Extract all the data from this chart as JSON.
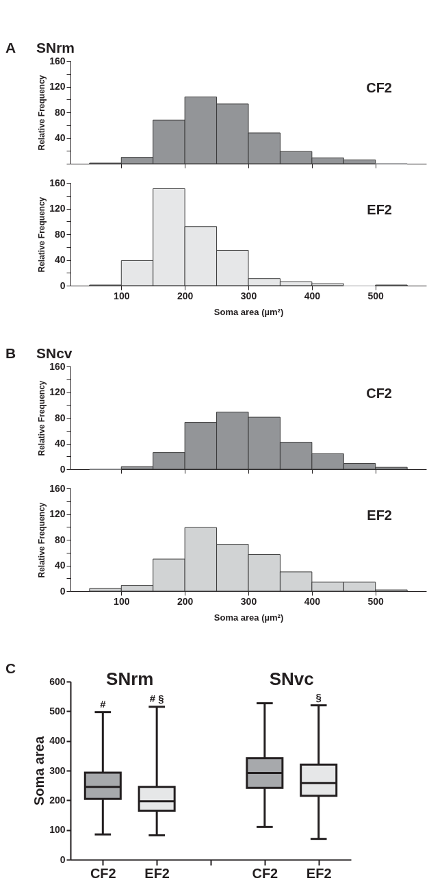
{
  "chart_data": [
    {
      "type": "histogram",
      "title": "SNrm",
      "annotations": [
        "A"
      ],
      "ylabel": "Relative Frequency",
      "bins": [
        50,
        100,
        150,
        200,
        250,
        300,
        350,
        400,
        450,
        500,
        550
      ],
      "series": [
        {
          "name": "CF2",
          "color": "#939598",
          "values": [
            1,
            10,
            68,
            104,
            93,
            48,
            19,
            9,
            6,
            0
          ]
        }
      ],
      "xlim": [
        20,
        580
      ],
      "xticks": [
        100,
        200,
        300,
        400,
        500
      ],
      "ylim": [
        0,
        160
      ],
      "yticks": [
        {
          "value": 0,
          "label": null
        },
        {
          "value": 20,
          "label": null
        },
        40,
        {
          "value": 60,
          "label": null
        },
        80,
        {
          "value": 100,
          "label": null
        },
        120,
        {
          "value": 140,
          "label": null
        },
        160
      ],
      "tick_labels": "y"
    },
    {
      "type": "histogram",
      "ylabel": "Relative Frequency",
      "xlabel": "Soma area (µm²)",
      "bins": [
        50,
        100,
        150,
        200,
        250,
        300,
        350,
        400,
        450,
        500,
        550
      ],
      "series": [
        {
          "name": "EF2",
          "color": "#e6e7e8",
          "values": [
            1,
            39,
            151,
            92,
            55,
            11,
            6,
            3,
            0,
            1
          ]
        }
      ],
      "xlim": [
        20,
        580
      ],
      "xticks": [
        100,
        200,
        300,
        400,
        500
      ],
      "ylim": [
        0,
        160
      ],
      "yticks": [
        0,
        {
          "value": 20,
          "label": null
        },
        40,
        {
          "value": 60,
          "label": null
        },
        80,
        {
          "value": 100,
          "label": null
        },
        120,
        {
          "value": 140,
          "label": null
        },
        160
      ]
    },
    {
      "type": "histogram",
      "title": "SNcv",
      "annotations": [
        "B"
      ],
      "ylabel": "Relative Frequency",
      "bins": [
        50,
        100,
        150,
        200,
        250,
        300,
        350,
        400,
        450,
        500,
        550
      ],
      "series": [
        {
          "name": "CF2",
          "color": "#939598",
          "values": [
            0,
            4,
            26,
            73,
            89,
            81,
            42,
            24,
            9,
            3
          ]
        }
      ],
      "xlim": [
        20,
        580
      ],
      "xticks": [
        100,
        200,
        300,
        400,
        500
      ],
      "ylim": [
        0,
        160
      ],
      "yticks": [
        0,
        {
          "value": 20,
          "label": null
        },
        40,
        {
          "value": 60,
          "label": null
        },
        80,
        {
          "value": 100,
          "label": null
        },
        120,
        {
          "value": 140,
          "label": null
        },
        160
      ],
      "tick_labels": "y"
    },
    {
      "type": "histogram",
      "ylabel": "Relative Frequency",
      "xlabel": "Soma area (µm²)",
      "bins": [
        50,
        100,
        150,
        200,
        250,
        300,
        350,
        400,
        450,
        500,
        550
      ],
      "series": [
        {
          "name": "EF2",
          "color": "#d1d3d4",
          "values": [
            4,
            9,
            50,
            99,
            73,
            57,
            30,
            14,
            14,
            2
          ]
        }
      ],
      "xlim": [
        20,
        580
      ],
      "xticks": [
        100,
        200,
        300,
        400,
        500
      ],
      "ylim": [
        0,
        160
      ],
      "yticks": [
        0,
        {
          "value": 20,
          "label": null
        },
        40,
        {
          "value": 60,
          "label": null
        },
        80,
        {
          "value": 100,
          "label": null
        },
        120,
        {
          "value": 140,
          "label": null
        },
        160
      ]
    },
    {
      "type": "box",
      "annotations": [
        "C",
        "SNrm",
        "SNvc"
      ],
      "ylabel": "Soma area",
      "categories": [
        "CF2",
        "EF2",
        null,
        "CF2",
        "EF2"
      ],
      "colors": [
        "#a7a9ac",
        "#e6e7e8",
        null,
        "#a7a9ac",
        "#e6e7e8"
      ],
      "value_labels": [
        "#",
        "# §",
        null,
        null,
        "§"
      ],
      "boxes": [
        {
          "low": 85,
          "q1": 205,
          "median": 245,
          "q3": 293,
          "high": 497
        },
        {
          "low": 82,
          "q1": 165,
          "median": 197,
          "q3": 245,
          "high": 515
        },
        null,
        {
          "low": 110,
          "q1": 242,
          "median": 292,
          "q3": 342,
          "high": 527
        },
        {
          "low": 70,
          "q1": 215,
          "median": 258,
          "q3": 320,
          "high": 520
        }
      ],
      "ylim": [
        0,
        600
      ],
      "yticks": [
        0,
        100,
        200,
        300,
        400,
        500,
        600
      ]
    }
  ]
}
